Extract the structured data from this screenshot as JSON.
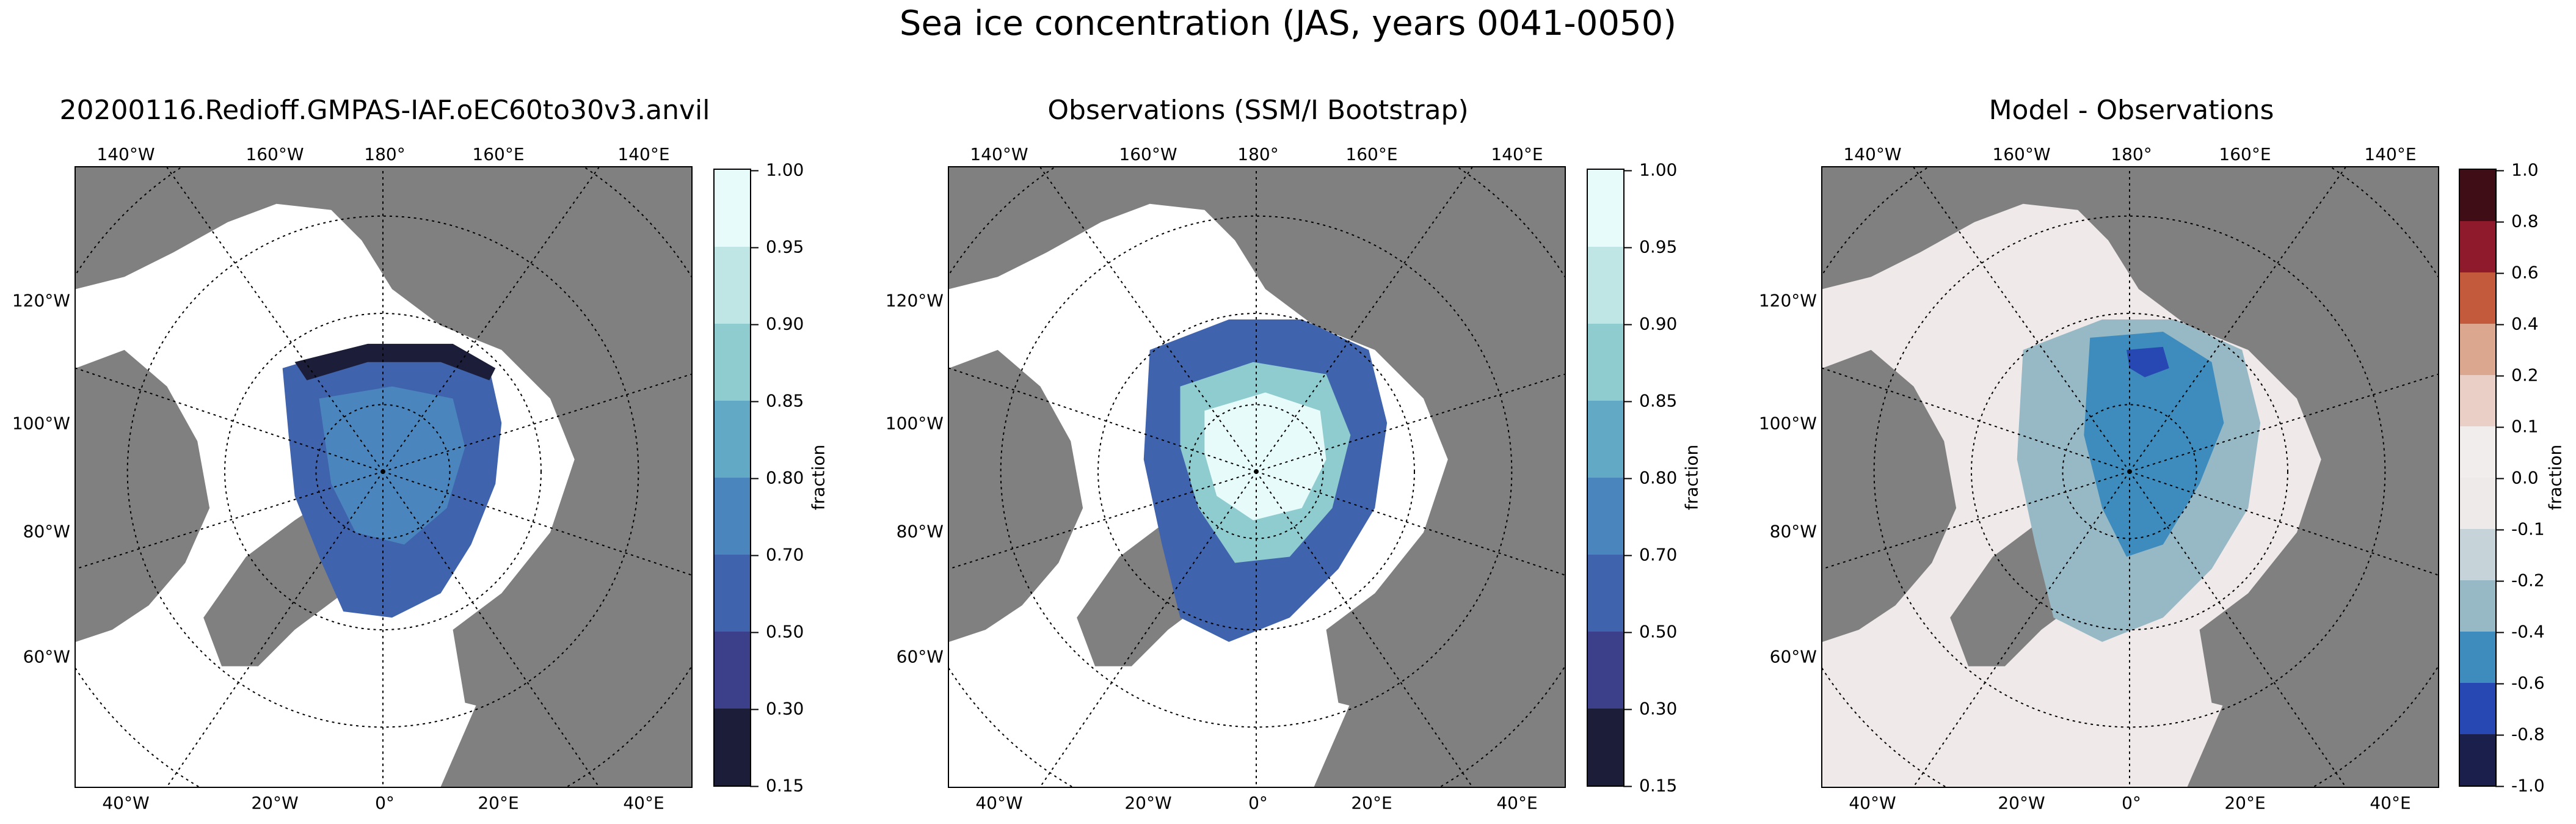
{
  "title": "Sea ice concentration (JAS, years 0041-0050)",
  "panels": [
    {
      "title": "20200116.Redioff.GMPAS-IAF.oEC60to30v3.anvil"
    },
    {
      "title": "Observations (SSM/I Bootstrap)"
    },
    {
      "title": "Model - Observations"
    }
  ],
  "lon_labels_top": [
    "140°W",
    "160°W",
    "180°",
    "160°E",
    "140°E"
  ],
  "lon_labels_bottom": [
    "40°W",
    "20°W",
    "0°",
    "20°E",
    "40°E"
  ],
  "lat_labels": [
    "120°W",
    "100°W",
    "80°W",
    "60°W"
  ],
  "colorbar_main": {
    "label": "fraction",
    "ticks": [
      "1.00",
      "0.95",
      "0.90",
      "0.85",
      "0.80",
      "0.70",
      "0.50",
      "0.30",
      "0.15"
    ],
    "colors": [
      "#e8fbfb",
      "#bfe5e5",
      "#8fcccf",
      "#62a9c6",
      "#4a86bd",
      "#3f63ad",
      "#3c3f8a",
      "#1c1d38"
    ]
  },
  "colorbar_diff": {
    "label": "fraction",
    "ticks": [
      "1.0",
      "0.8",
      "0.6",
      "0.4",
      "0.2",
      "0.1",
      "0.0",
      "-0.1",
      "-0.2",
      "-0.4",
      "-0.6",
      "-0.8",
      "-1.0"
    ],
    "colors": [
      "#3e0d15",
      "#8e1a2c",
      "#c35a3b",
      "#dba88f",
      "#e9cfc5",
      "#f1eded",
      "#efeaea",
      "#c6d3d8",
      "#97b9c6",
      "#3d8cbd",
      "#2748b3",
      "#1b1f4b"
    ]
  },
  "map_colors": {
    "land": "#808080",
    "ocean": "#ffffff",
    "diff_ocean": "#efe9e9",
    "graticule": "#000000"
  }
}
